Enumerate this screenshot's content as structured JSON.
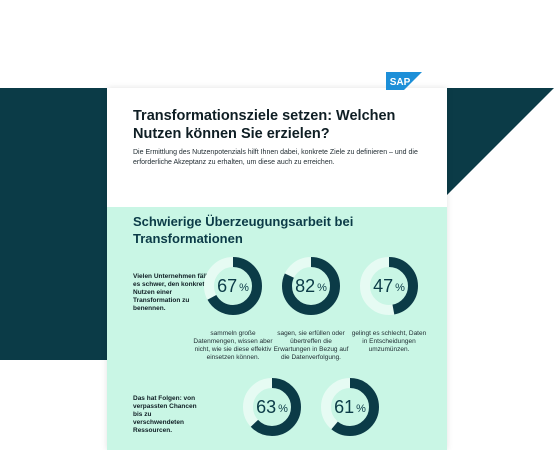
{
  "logo_text": "SAP",
  "title": "Transformationsziele setzen: Welchen Nutzen können Sie erzielen?",
  "intro": "Die Ermittlung des Nutzenpotenzials hilft Ihnen dabei, konkrete Ziele zu definieren – und die erforderliche Akzeptanz zu erhalten, um diese auch zu erreichen.",
  "section_title": "Schwierige Überzeugungsarbeit bei Transformationen",
  "side_text_1": "Vielen Unternehmen fällt es schwer, den konkreten Nutzen einer Transformation zu benennen.",
  "side_text_2": "Das hat Folgen: von verpassten Chancen bis zu verschwendeten Ressourcen.",
  "stats": [
    {
      "value": "67",
      "unit": "%",
      "fraction": 0.67,
      "caption": "sammeln große Datenmengen, wissen aber nicht, wie sie diese effektiv einsetzen können."
    },
    {
      "value": "82",
      "unit": "%",
      "fraction": 0.82,
      "caption": "sagen, sie erfüllen oder übertreffen die Erwartungen in Bezug auf die Datenverfolgung."
    },
    {
      "value": "47",
      "unit": "%",
      "fraction": 0.47,
      "caption": "gelingt es schlecht, Daten in Entscheidungen umzumünzen."
    },
    {
      "value": "63",
      "unit": "%",
      "fraction": 0.63,
      "caption": ""
    },
    {
      "value": "61",
      "unit": "%",
      "fraction": 0.61,
      "caption": ""
    }
  ],
  "colors": {
    "dark": "#0b3b47",
    "mint": "#c9f6e5",
    "ring_light": "#e6fbf3",
    "sap_blue": "#1d8fd8"
  }
}
